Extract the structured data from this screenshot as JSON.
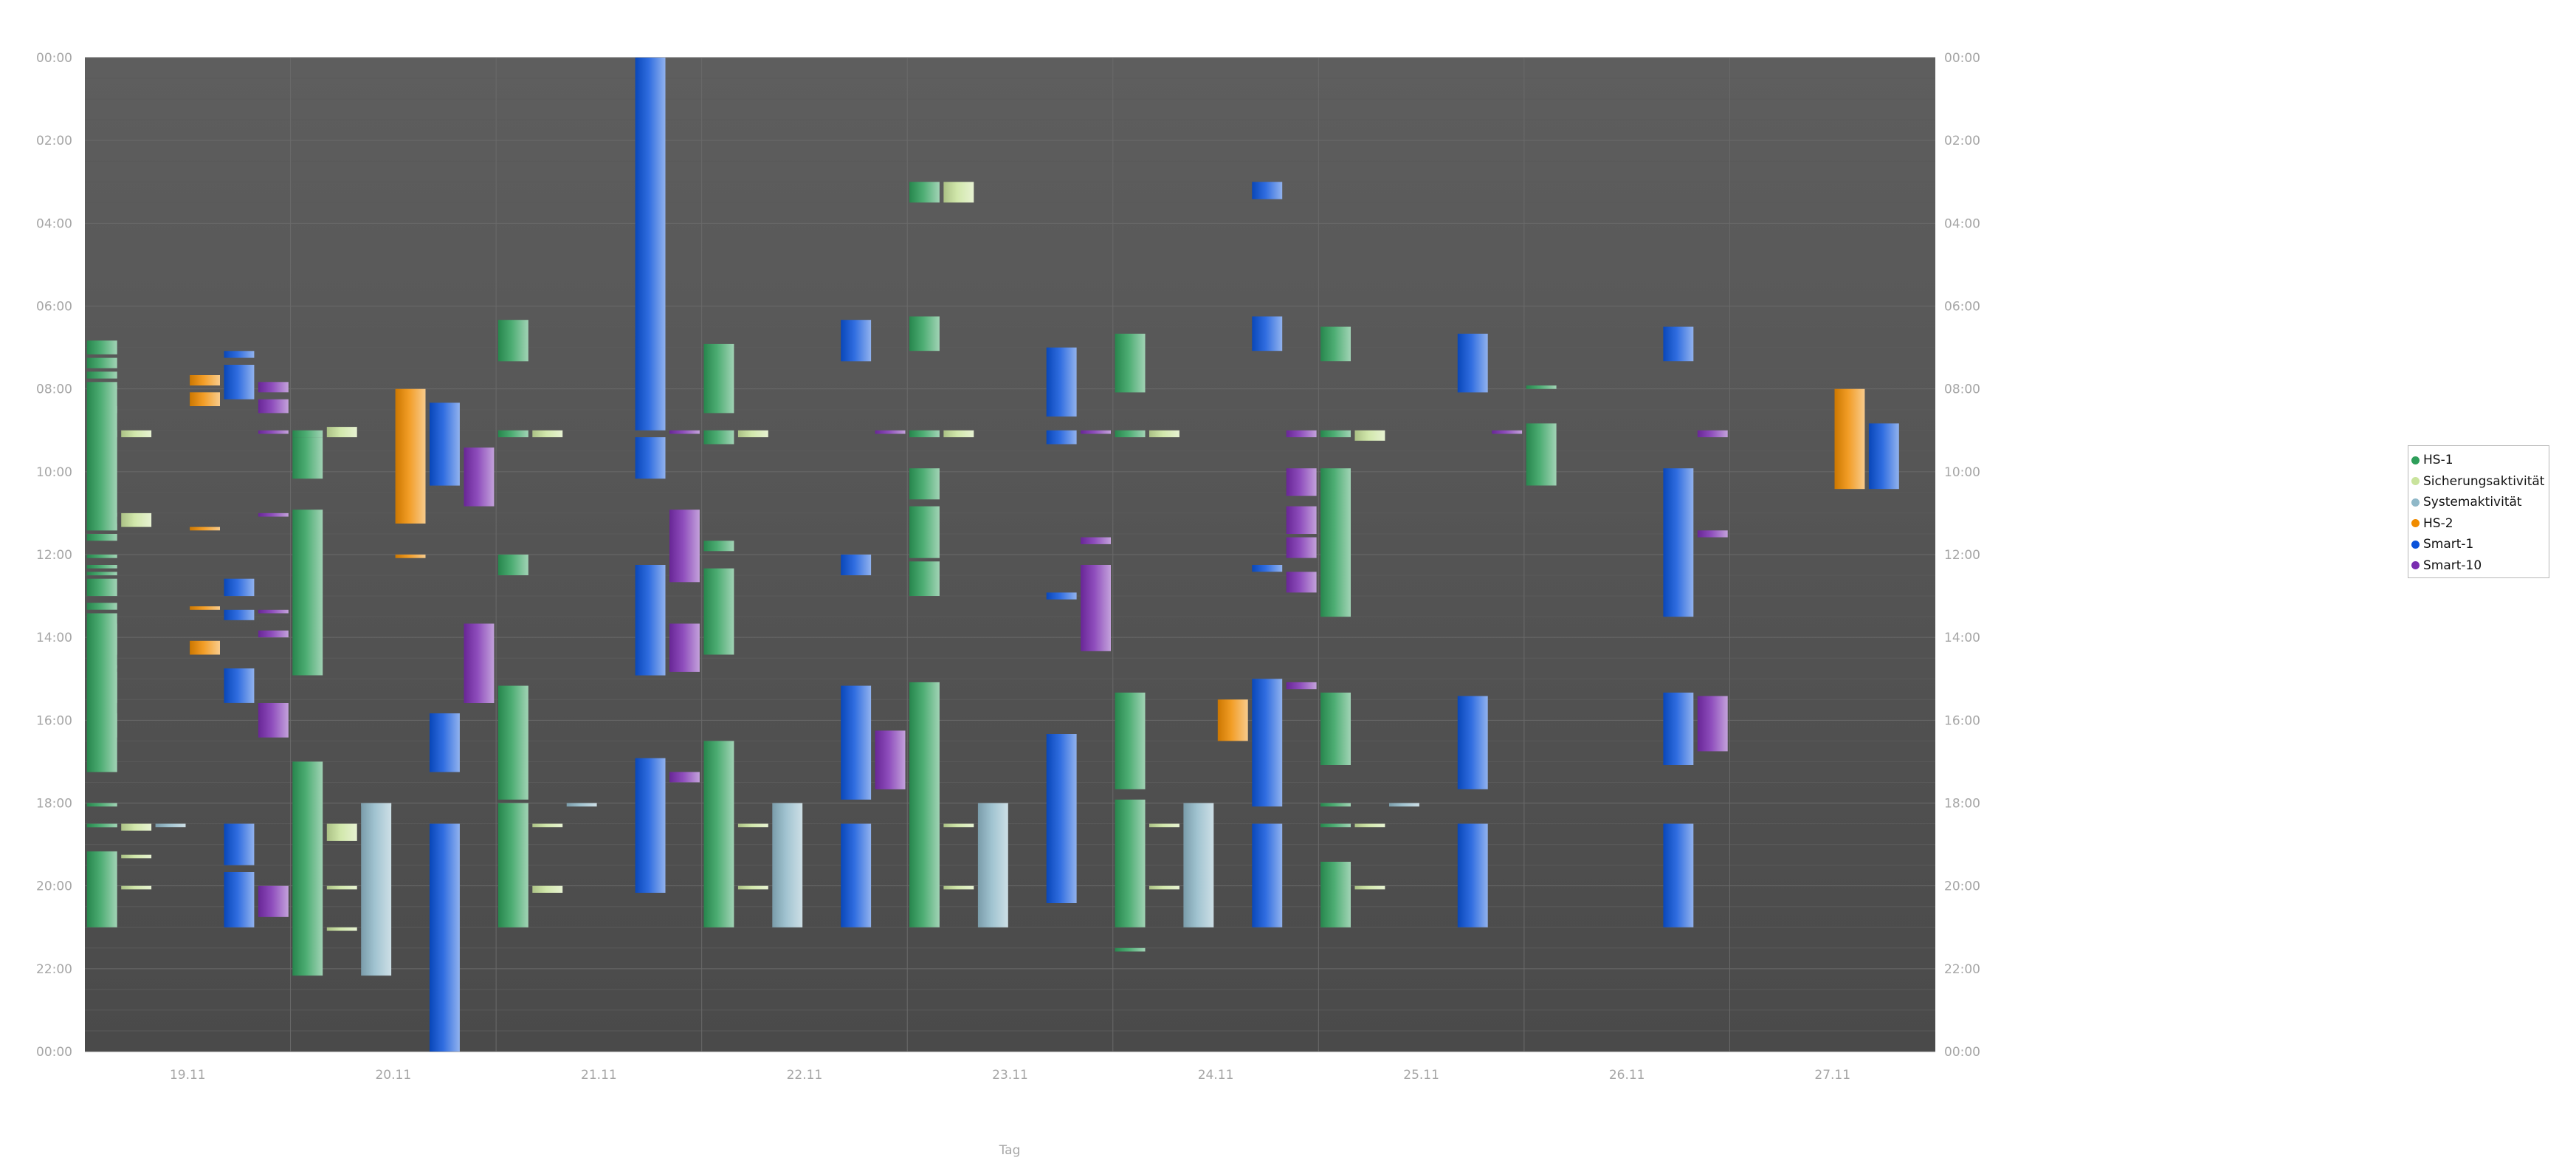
{
  "chart_data": {
    "type": "bar",
    "xlabel": "Tag",
    "ylabel": "",
    "ylim": [
      "00:00",
      "24:00"
    ],
    "y_ticks": [
      "00:00",
      "02:00",
      "04:00",
      "06:00",
      "08:00",
      "10:00",
      "12:00",
      "14:00",
      "16:00",
      "18:00",
      "20:00",
      "22:00",
      "00:00"
    ],
    "categories": [
      "19.11",
      "20.11",
      "21.11",
      "22.11",
      "23.11",
      "24.11",
      "25.11",
      "26.11",
      "27.11"
    ],
    "legend_position": "right",
    "grid": true,
    "series": [
      {
        "name": "HS-1",
        "color": "#2e9e5a",
        "values": [
          [
            "19.11",
            "06:50",
            "07:10"
          ],
          [
            "19.11",
            "07:15",
            "07:30"
          ],
          [
            "19.11",
            "07:35",
            "07:45"
          ],
          [
            "19.11",
            "07:50",
            "08:35"
          ],
          [
            "19.11",
            "09:00",
            "09:10"
          ],
          [
            "19.11",
            "11:00",
            "11:05"
          ],
          [
            "19.11",
            "11:15",
            "11:25"
          ],
          [
            "19.11",
            "11:30",
            "11:40"
          ],
          [
            "19.11",
            "12:35",
            "13:00"
          ],
          [
            "19.11",
            "13:10",
            "13:20"
          ],
          [
            "19.11",
            "13:25",
            "14:25"
          ],
          [
            "19.11",
            "14:40",
            "14:45"
          ],
          [
            "19.11",
            "14:50",
            "16:25"
          ],
          [
            "19.11",
            "18:30",
            "18:35"
          ],
          [
            "19.11",
            "19:10",
            "21:00"
          ],
          [
            "19.11",
            "07:55",
            "08:00"
          ],
          [
            "19.11",
            "08:25",
            "11:25"
          ],
          [
            "19.11",
            "12:00",
            "12:05"
          ],
          [
            "19.11",
            "12:15",
            "12:20"
          ],
          [
            "19.11",
            "12:25",
            "12:30"
          ],
          [
            "19.11",
            "13:40",
            "15:35"
          ],
          [
            "19.11",
            "15:50",
            "17:15"
          ],
          [
            "19.11",
            "18:00",
            "18:05"
          ],
          [
            "19.11",
            "18:30",
            "18:35"
          ],
          [
            "20.11",
            "09:00",
            "09:10"
          ],
          [
            "20.11",
            "09:10",
            "10:10"
          ],
          [
            "20.11",
            "10:55",
            "14:55"
          ],
          [
            "20.11",
            "17:00",
            "22:10"
          ],
          [
            "21.11",
            "06:20",
            "07:20"
          ],
          [
            "21.11",
            "09:00",
            "09:10"
          ],
          [
            "21.11",
            "12:00",
            "12:30"
          ],
          [
            "21.11",
            "15:10",
            "17:55"
          ],
          [
            "21.11",
            "18:00",
            "21:00"
          ],
          [
            "22.11",
            "11:40",
            "11:55"
          ],
          [
            "22.11",
            "12:20",
            "14:25"
          ],
          [
            "22.11",
            "06:55",
            "08:35"
          ],
          [
            "22.11",
            "09:00",
            "09:20"
          ],
          [
            "22.11",
            "16:30",
            "21:00"
          ],
          [
            "23.11",
            "03:00",
            "03:30"
          ],
          [
            "23.11",
            "06:15",
            "07:05"
          ],
          [
            "23.11",
            "09:00",
            "09:10"
          ],
          [
            "23.11",
            "09:55",
            "10:40"
          ],
          [
            "23.11",
            "10:50",
            "12:05"
          ],
          [
            "23.11",
            "12:10",
            "13:00"
          ],
          [
            "23.11",
            "15:05",
            "21:00"
          ],
          [
            "24.11",
            "06:40",
            "08:05"
          ],
          [
            "24.11",
            "09:00",
            "09:10"
          ],
          [
            "24.11",
            "15:20",
            "17:40"
          ],
          [
            "24.11",
            "17:55",
            "21:00"
          ],
          [
            "24.11",
            "21:30",
            "21:35"
          ],
          [
            "25.11",
            "06:30",
            "07:20"
          ],
          [
            "25.11",
            "09:00",
            "09:10"
          ],
          [
            "25.11",
            "09:55",
            "13:30"
          ],
          [
            "25.11",
            "15:20",
            "17:05"
          ],
          [
            "25.11",
            "18:00",
            "18:05"
          ],
          [
            "25.11",
            "18:30",
            "18:35"
          ],
          [
            "25.11",
            "19:25",
            "21:00"
          ],
          [
            "26.11",
            "07:55",
            "08:00"
          ],
          [
            "26.11",
            "08:50",
            "10:20"
          ]
        ]
      },
      {
        "name": "Sicherungsaktivität",
        "color": "#c9e39c",
        "values": [
          [
            "19.11",
            "09:00",
            "09:10"
          ],
          [
            "19.11",
            "11:00",
            "11:20"
          ],
          [
            "19.11",
            "18:30",
            "18:40"
          ],
          [
            "19.11",
            "19:15",
            "19:20"
          ],
          [
            "19.11",
            "20:00",
            "20:05"
          ],
          [
            "20.11",
            "08:55",
            "09:10"
          ],
          [
            "20.11",
            "18:30",
            "18:55"
          ],
          [
            "20.11",
            "20:00",
            "20:05"
          ],
          [
            "20.11",
            "21:00",
            "21:05"
          ],
          [
            "21.11",
            "09:00",
            "09:10"
          ],
          [
            "21.11",
            "18:30",
            "18:35"
          ],
          [
            "21.11",
            "20:00",
            "20:10"
          ],
          [
            "22.11",
            "09:00",
            "09:10"
          ],
          [
            "22.11",
            "18:30",
            "18:35"
          ],
          [
            "22.11",
            "20:00",
            "20:05"
          ],
          [
            "23.11",
            "03:00",
            "03:30"
          ],
          [
            "23.11",
            "09:00",
            "09:10"
          ],
          [
            "23.11",
            "18:30",
            "18:35"
          ],
          [
            "23.11",
            "20:00",
            "20:05"
          ],
          [
            "24.11",
            "09:00",
            "09:10"
          ],
          [
            "24.11",
            "18:30",
            "18:35"
          ],
          [
            "24.11",
            "20:00",
            "20:05"
          ],
          [
            "25.11",
            "09:00",
            "09:15"
          ],
          [
            "25.11",
            "18:30",
            "18:35"
          ],
          [
            "25.11",
            "20:00",
            "20:05"
          ]
        ]
      },
      {
        "name": "Systemaktivität",
        "color": "#8fb8c8",
        "values": [
          [
            "19.11",
            "18:30",
            "18:35"
          ],
          [
            "20.11",
            "18:00",
            "18:05"
          ],
          [
            "20.11",
            "18:00",
            "22:10"
          ],
          [
            "21.11",
            "18:00",
            "18:05"
          ],
          [
            "22.11",
            "18:00",
            "21:00"
          ],
          [
            "23.11",
            "18:00",
            "21:00"
          ],
          [
            "24.11",
            "18:00",
            "21:00"
          ],
          [
            "25.11",
            "18:00",
            "18:05"
          ]
        ]
      },
      {
        "name": "HS-2",
        "color": "#f08c00",
        "values": [
          [
            "19.11",
            "07:40",
            "07:55"
          ],
          [
            "19.11",
            "08:05",
            "08:25"
          ],
          [
            "19.11",
            "11:20",
            "11:25"
          ],
          [
            "19.11",
            "13:15",
            "13:20"
          ],
          [
            "19.11",
            "14:05",
            "14:25"
          ],
          [
            "20.11",
            "08:00",
            "11:15"
          ],
          [
            "20.11",
            "12:00",
            "12:05"
          ],
          [
            "24.11",
            "15:30",
            "16:30"
          ],
          [
            "27.11",
            "08:00",
            "10:25"
          ]
        ]
      },
      {
        "name": "Smart-1",
        "color": "#0b53da",
        "values": [
          [
            "19.11",
            "07:05",
            "07:15"
          ],
          [
            "19.11",
            "07:25",
            "08:15"
          ],
          [
            "19.11",
            "12:35",
            "13:00"
          ],
          [
            "19.11",
            "13:20",
            "13:35"
          ],
          [
            "19.11",
            "14:45",
            "15:35"
          ],
          [
            "19.11",
            "18:30",
            "19:30"
          ],
          [
            "19.11",
            "19:40",
            "21:00"
          ],
          [
            "20.11",
            "08:20",
            "10:20"
          ],
          [
            "20.11",
            "15:50",
            "17:15"
          ],
          [
            "20.11",
            "18:30",
            "24:00"
          ],
          [
            "21.11",
            "00:00",
            "09:00"
          ],
          [
            "21.11",
            "09:10",
            "10:10"
          ],
          [
            "21.11",
            "12:15",
            "14:55"
          ],
          [
            "21.11",
            "16:55",
            "20:10"
          ],
          [
            "22.11",
            "06:20",
            "07:20"
          ],
          [
            "22.11",
            "12:00",
            "12:30"
          ],
          [
            "22.11",
            "15:10",
            "17:55"
          ],
          [
            "22.11",
            "18:30",
            "21:00"
          ],
          [
            "23.11",
            "07:00",
            "08:40"
          ],
          [
            "23.11",
            "09:00",
            "09:20"
          ],
          [
            "23.11",
            "12:55",
            "13:05"
          ],
          [
            "23.11",
            "16:20",
            "20:25"
          ],
          [
            "24.11",
            "03:00",
            "03:25"
          ],
          [
            "24.11",
            "06:15",
            "07:05"
          ],
          [
            "24.11",
            "12:15",
            "12:25"
          ],
          [
            "24.11",
            "15:00",
            "18:05"
          ],
          [
            "24.11",
            "18:30",
            "21:00"
          ],
          [
            "25.11",
            "06:40",
            "08:05"
          ],
          [
            "25.11",
            "15:25",
            "17:40"
          ],
          [
            "25.11",
            "18:30",
            "21:00"
          ],
          [
            "26.11",
            "06:30",
            "07:20"
          ],
          [
            "26.11",
            "09:55",
            "13:30"
          ],
          [
            "26.11",
            "15:20",
            "17:05"
          ],
          [
            "26.11",
            "18:30",
            "21:00"
          ],
          [
            "27.11",
            "08:50",
            "10:25"
          ]
        ]
      },
      {
        "name": "Smart-10",
        "color": "#7a2db0",
        "values": [
          [
            "19.11",
            "07:50",
            "08:05"
          ],
          [
            "19.11",
            "08:15",
            "08:35"
          ],
          [
            "19.11",
            "09:00",
            "09:05"
          ],
          [
            "19.11",
            "11:00",
            "11:05"
          ],
          [
            "19.11",
            "13:20",
            "13:25"
          ],
          [
            "19.11",
            "13:50",
            "14:00"
          ],
          [
            "19.11",
            "15:35",
            "16:25"
          ],
          [
            "19.11",
            "20:00",
            "20:45"
          ],
          [
            "20.11",
            "09:25",
            "10:50"
          ],
          [
            "20.11",
            "13:40",
            "15:35"
          ],
          [
            "21.11",
            "09:00",
            "09:05"
          ],
          [
            "21.11",
            "10:55",
            "12:40"
          ],
          [
            "21.11",
            "13:40",
            "14:50"
          ],
          [
            "21.11",
            "17:15",
            "17:30"
          ],
          [
            "22.11",
            "09:00",
            "09:05"
          ],
          [
            "22.11",
            "16:15",
            "17:40"
          ],
          [
            "23.11",
            "09:00",
            "09:05"
          ],
          [
            "23.11",
            "11:35",
            "11:45"
          ],
          [
            "23.11",
            "12:15",
            "14:20"
          ],
          [
            "24.11",
            "09:00",
            "09:10"
          ],
          [
            "24.11",
            "09:55",
            "10:35"
          ],
          [
            "24.11",
            "10:50",
            "11:30"
          ],
          [
            "24.11",
            "11:35",
            "12:05"
          ],
          [
            "24.11",
            "12:25",
            "12:55"
          ],
          [
            "24.11",
            "15:05",
            "15:15"
          ],
          [
            "25.11",
            "09:00",
            "09:05"
          ],
          [
            "26.11",
            "09:00",
            "09:10"
          ],
          [
            "26.11",
            "11:25",
            "11:35"
          ],
          [
            "26.11",
            "15:25",
            "16:45"
          ]
        ]
      }
    ]
  }
}
